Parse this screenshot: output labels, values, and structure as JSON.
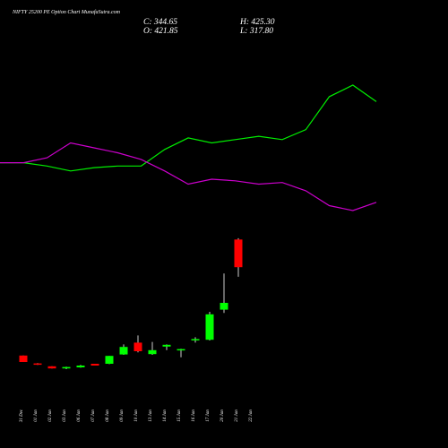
{
  "header": {
    "title": "NIFTY 25200  PE Option  Chart MunafaSutra.com",
    "close_label": "C: 344.65",
    "high_label": "H: 425.30",
    "open_label": "O: 421.85",
    "low_label": "L: 317.80"
  },
  "colors": {
    "background": "#000000",
    "up": "#00ff00",
    "down": "#ff0000",
    "wick": "#ffffff",
    "line_green": "#00ee00",
    "line_magenta": "#cc00cc"
  },
  "chart_data": [
    {
      "type": "line",
      "title": "",
      "x": [
        "31 Dec",
        "01 Jan",
        "02 Jan",
        "03 Jan",
        "06 Jan",
        "07 Jan",
        "08 Jan",
        "09 Jan",
        "10 Jan",
        "13 Jan",
        "14 Jan",
        "15 Jan",
        "16 Jan",
        "17 Jan",
        "20 Jan",
        "21 Jan",
        "22 Jan"
      ],
      "series": [
        {
          "color": "#00ee00",
          "values": [
            1.0,
            1.0,
            0.98,
            0.95,
            0.97,
            0.98,
            0.98,
            1.08,
            1.15,
            1.12,
            1.14,
            1.16,
            1.14,
            1.2,
            1.4,
            1.47,
            1.37
          ]
        },
        {
          "color": "#cc00cc",
          "values": [
            1.0,
            1.0,
            1.03,
            1.12,
            1.09,
            1.06,
            1.02,
            0.95,
            0.87,
            0.9,
            0.89,
            0.87,
            0.88,
            0.83,
            0.74,
            0.71,
            0.76
          ]
        }
      ]
    },
    {
      "type": "candlestick",
      "title": "",
      "x": [
        "31 Dec",
        "01 Jan",
        "02 Jan",
        "03 Jan",
        "06 Jan",
        "07 Jan",
        "08 Jan",
        "09 Jan",
        "10 Jan",
        "13 Jan",
        "14 Jan",
        "15 Jan",
        "16 Jan",
        "17 Jan",
        "20 Jan",
        "21 Jan",
        "22 Jan"
      ],
      "ylim": [
        40,
        440
      ],
      "series": [
        {
          "date": "31 Dec",
          "open": 98,
          "high": 98,
          "low": 80,
          "close": 80
        },
        {
          "date": "01 Jan",
          "open": 76,
          "high": 77,
          "low": 72,
          "close": 73
        },
        {
          "date": "02 Jan",
          "open": 68,
          "high": 68,
          "low": 62,
          "close": 62
        },
        {
          "date": "03 Jan",
          "open": 62,
          "high": 67,
          "low": 60,
          "close": 66
        },
        {
          "date": "06 Jan",
          "open": 65,
          "high": 72,
          "low": 64,
          "close": 70
        },
        {
          "date": "07 Jan",
          "open": 75,
          "high": 75,
          "low": 70,
          "close": 70
        },
        {
          "date": "08 Jan",
          "open": 75,
          "high": 97,
          "low": 74,
          "close": 97
        },
        {
          "date": "09 Jan",
          "open": 101,
          "high": 129,
          "low": 100,
          "close": 122
        },
        {
          "date": "10 Jan",
          "open": 134,
          "high": 154,
          "low": 107,
          "close": 110
        },
        {
          "date": "13 Jan",
          "open": 102,
          "high": 136,
          "low": 100,
          "close": 113
        },
        {
          "date": "14 Jan",
          "open": 123,
          "high": 129,
          "low": 113,
          "close": 128
        },
        {
          "date": "15 Jan",
          "open": 113,
          "high": 117,
          "low": 93,
          "close": 116
        },
        {
          "date": "16 Jan",
          "open": 144,
          "high": 149,
          "low": 134,
          "close": 144
        },
        {
          "date": "17 Jan",
          "open": 142,
          "high": 220,
          "low": 140,
          "close": 213
        },
        {
          "date": "20 Jan",
          "open": 226,
          "high": 327,
          "low": 217,
          "close": 245
        },
        {
          "date": "21 Jan",
          "open": 421.85,
          "high": 425.3,
          "low": 317.8,
          "close": 344.65
        }
      ]
    }
  ]
}
